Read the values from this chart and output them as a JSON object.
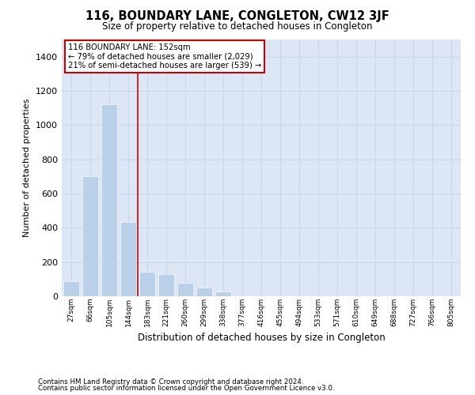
{
  "title": "116, BOUNDARY LANE, CONGLETON, CW12 3JF",
  "subtitle": "Size of property relative to detached houses in Congleton",
  "xlabel": "Distribution of detached houses by size in Congleton",
  "ylabel": "Number of detached properties",
  "categories": [
    "27sqm",
    "66sqm",
    "105sqm",
    "144sqm",
    "183sqm",
    "221sqm",
    "260sqm",
    "299sqm",
    "338sqm",
    "377sqm",
    "416sqm",
    "455sqm",
    "494sqm",
    "533sqm",
    "571sqm",
    "610sqm",
    "649sqm",
    "688sqm",
    "727sqm",
    "766sqm",
    "805sqm"
  ],
  "values": [
    90,
    700,
    1120,
    435,
    145,
    130,
    80,
    50,
    28,
    0,
    0,
    0,
    0,
    0,
    0,
    0,
    0,
    0,
    0,
    0,
    0
  ],
  "bar_color": "#bad0e8",
  "grid_color": "#c8d4e8",
  "background_color": "#dce6f5",
  "property_line_x": 3.5,
  "annotation_text_line1": "116 BOUNDARY LANE: 152sqm",
  "annotation_text_line2": "← 79% of detached houses are smaller (2,029)",
  "annotation_text_line3": "21% of semi-detached houses are larger (539) →",
  "annotation_box_color": "#ffffff",
  "annotation_box_edge": "#cc0000",
  "property_line_color": "#cc0000",
  "ylim": [
    0,
    1500
  ],
  "yticks": [
    0,
    200,
    400,
    600,
    800,
    1000,
    1200,
    1400
  ],
  "footnote1": "Contains HM Land Registry data © Crown copyright and database right 2024.",
  "footnote2": "Contains public sector information licensed under the Open Government Licence v3.0."
}
